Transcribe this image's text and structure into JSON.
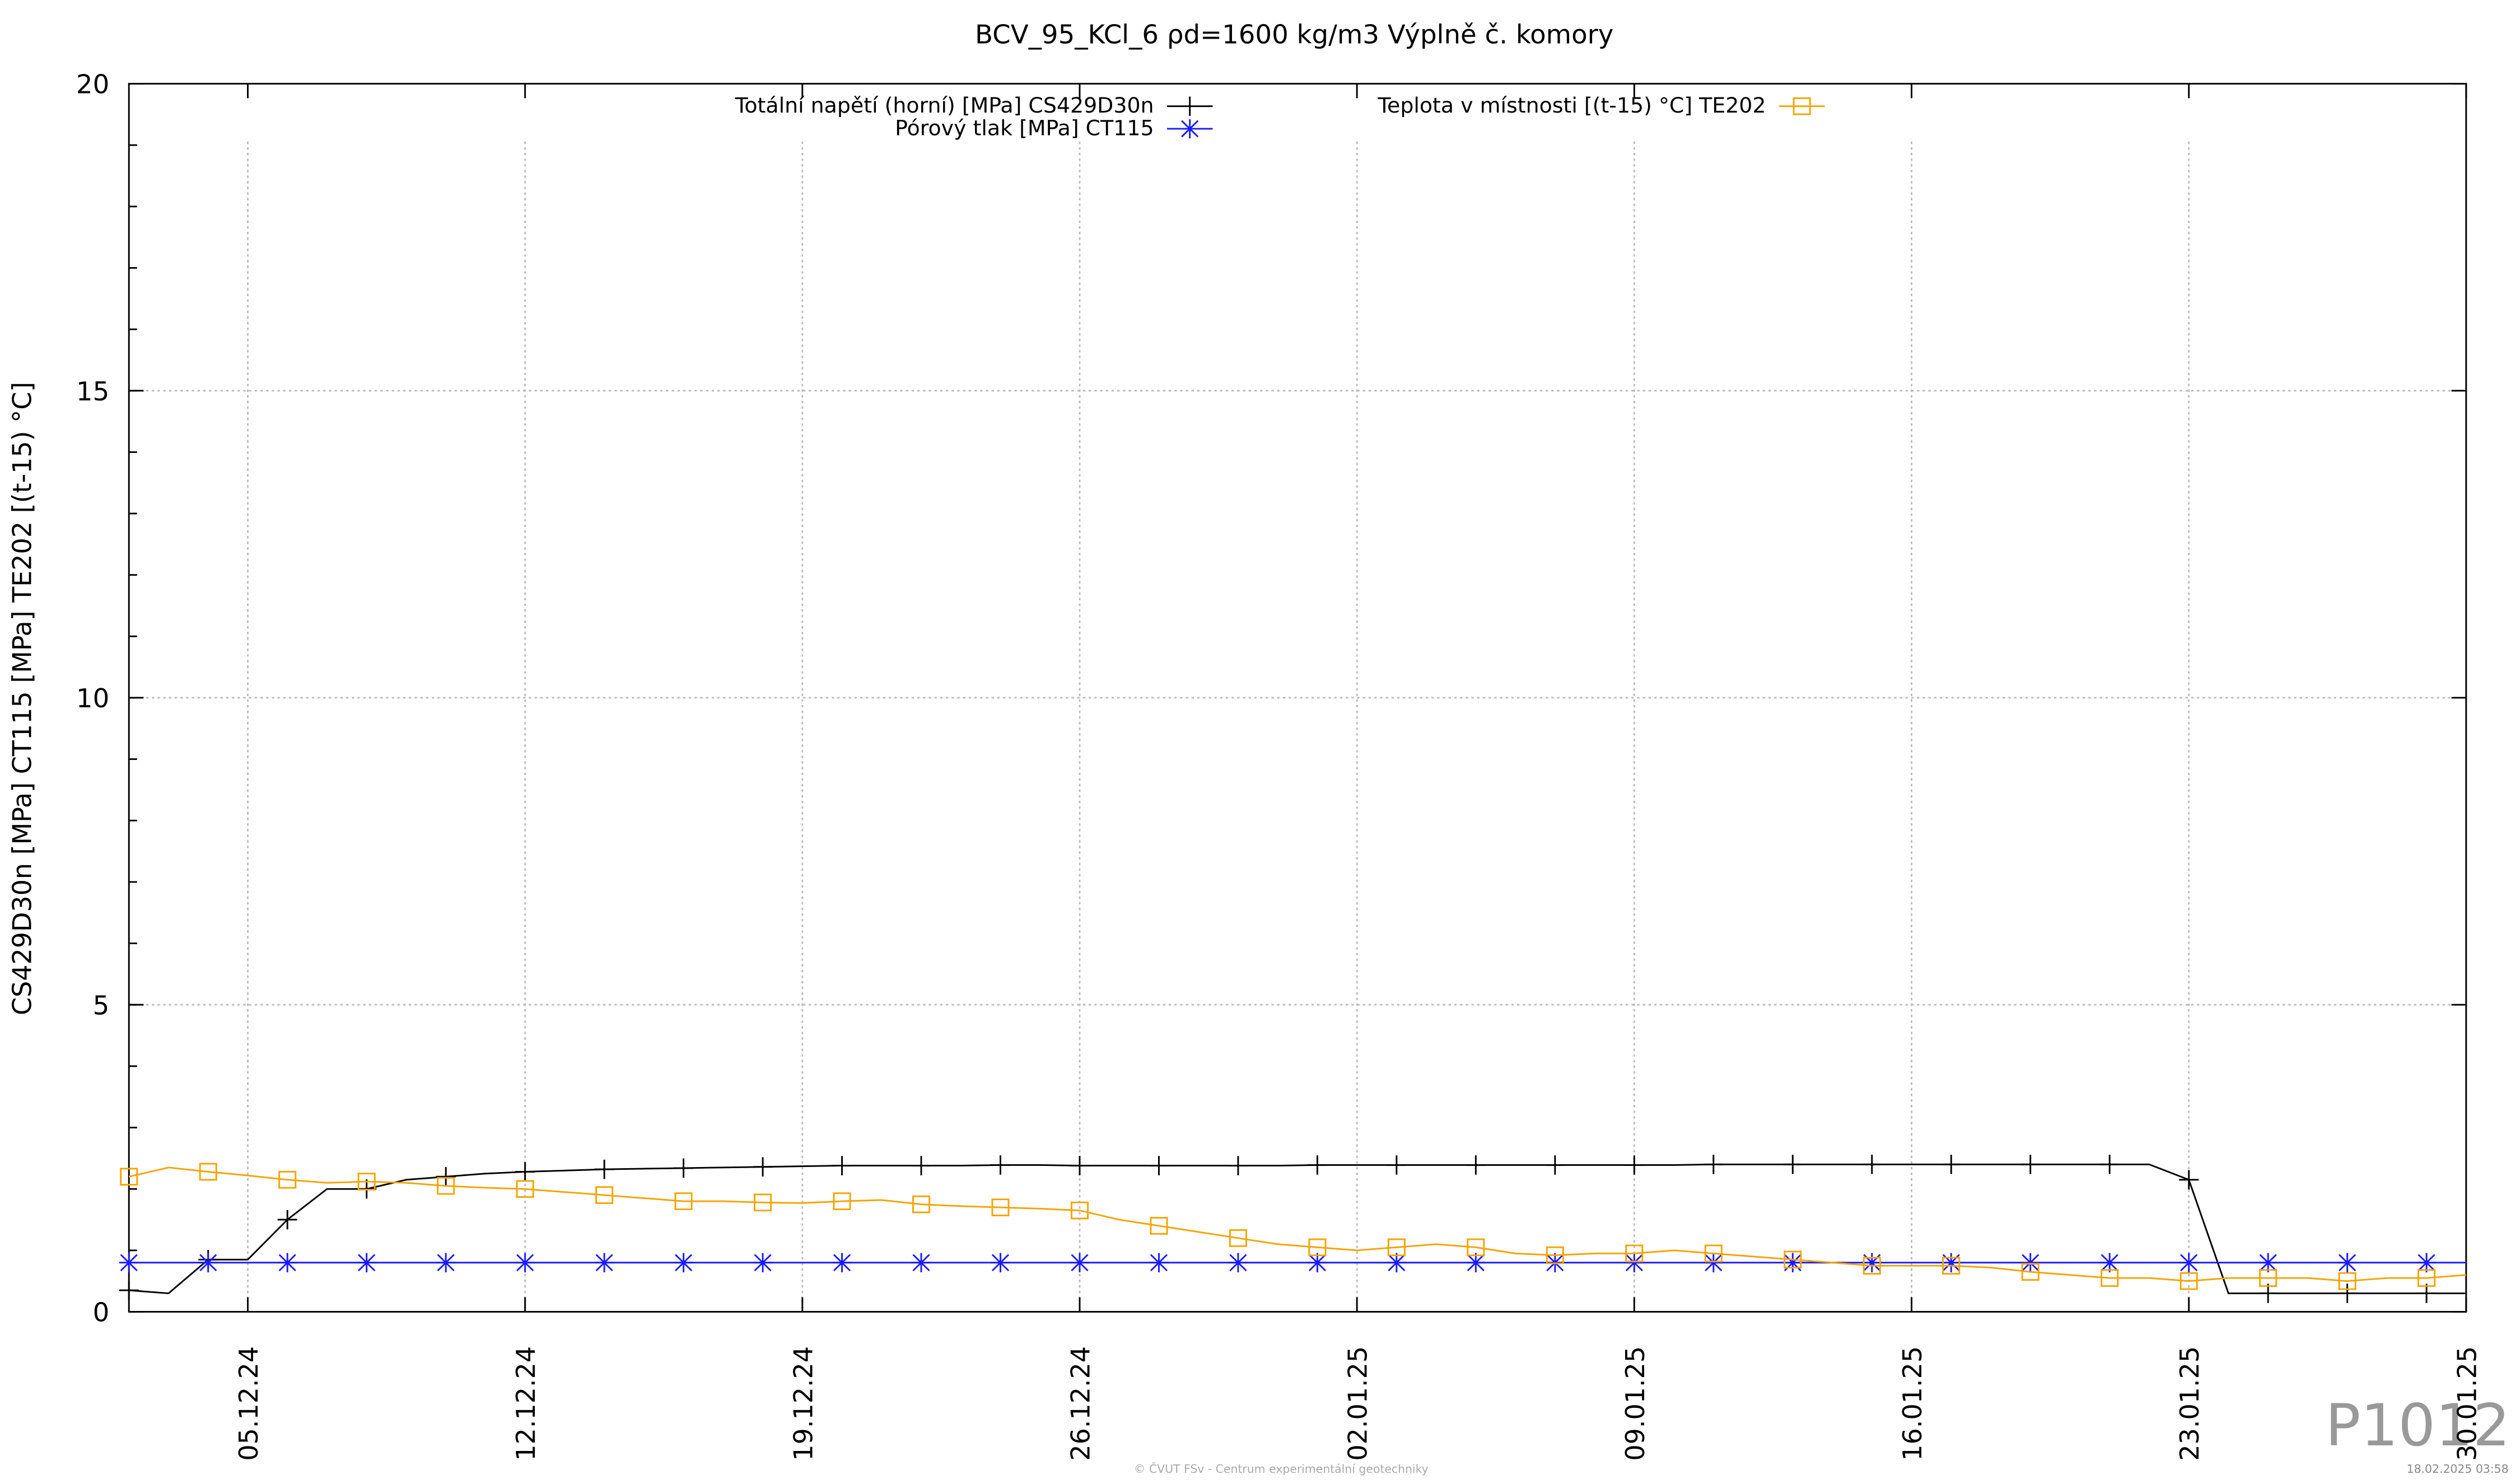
{
  "chart_data": {
    "type": "line",
    "title": "BCV_95_KCl_6 ρd=1600 kg/m3 Výplně č. komory",
    "y_label": "CS429D30n [MPa] CT115 [MPa] TE202 [(t-15) °C]",
    "watermark": "P1012",
    "footer": "© ČVUT FSv - Centrum experimentální geotechniky",
    "timestamp": "18.02.2025 03:58",
    "x": [
      "02.12.24",
      "03.12.24",
      "04.12.24",
      "05.12.24",
      "06.12.24",
      "07.12.24",
      "08.12.24",
      "09.12.24",
      "10.12.24",
      "11.12.24",
      "12.12.24",
      "13.12.24",
      "14.12.24",
      "15.12.24",
      "16.12.24",
      "17.12.24",
      "18.12.24",
      "19.12.24",
      "20.12.24",
      "21.12.24",
      "22.12.24",
      "23.12.24",
      "24.12.24",
      "25.12.24",
      "26.12.24",
      "27.12.24",
      "28.12.24",
      "29.12.24",
      "30.12.24",
      "31.12.24",
      "01.01.25",
      "02.01.25",
      "03.01.25",
      "04.01.25",
      "05.01.25",
      "06.01.25",
      "07.01.25",
      "08.01.25",
      "09.01.25",
      "10.01.25",
      "11.01.25",
      "12.01.25",
      "13.01.25",
      "14.01.25",
      "15.01.25",
      "16.01.25",
      "17.01.25",
      "18.01.25",
      "19.01.25",
      "20.01.25",
      "21.01.25",
      "22.01.25",
      "23.01.25",
      "24.01.25",
      "25.01.25",
      "26.01.25",
      "27.01.25",
      "28.01.25",
      "29.01.25",
      "30.01.25"
    ],
    "series": [
      {
        "name": "Totální napětí (horní) [MPa] CS429D30n",
        "color": "#000000",
        "marker": "plus",
        "values": [
          0.35,
          0.3,
          0.85,
          0.85,
          1.5,
          2.0,
          2.0,
          2.15,
          2.2,
          2.25,
          2.28,
          2.3,
          2.32,
          2.33,
          2.34,
          2.35,
          2.36,
          2.37,
          2.38,
          2.38,
          2.38,
          2.38,
          2.39,
          2.39,
          2.38,
          2.38,
          2.38,
          2.38,
          2.38,
          2.38,
          2.39,
          2.39,
          2.39,
          2.39,
          2.39,
          2.39,
          2.39,
          2.39,
          2.39,
          2.39,
          2.4,
          2.4,
          2.4,
          2.4,
          2.4,
          2.4,
          2.4,
          2.4,
          2.4,
          2.4,
          2.4,
          2.4,
          2.15,
          0.3,
          0.3,
          0.3,
          0.3,
          0.3,
          0.3,
          0.3
        ]
      },
      {
        "name": "Pórový tlak [MPa] CT115",
        "color": "#1a1aff",
        "marker": "star",
        "values": [
          0.8,
          0.8,
          0.8,
          0.8,
          0.8,
          0.8,
          0.8,
          0.8,
          0.8,
          0.8,
          0.8,
          0.8,
          0.8,
          0.8,
          0.8,
          0.8,
          0.8,
          0.8,
          0.8,
          0.8,
          0.8,
          0.8,
          0.8,
          0.8,
          0.8,
          0.8,
          0.8,
          0.8,
          0.8,
          0.8,
          0.8,
          0.8,
          0.8,
          0.8,
          0.8,
          0.8,
          0.8,
          0.8,
          0.8,
          0.8,
          0.8,
          0.8,
          0.8,
          0.8,
          0.8,
          0.8,
          0.8,
          0.8,
          0.8,
          0.8,
          0.8,
          0.8,
          0.8,
          0.8,
          0.8,
          0.8,
          0.8,
          0.8,
          0.8,
          0.8
        ]
      },
      {
        "name": "Teplota v místnosti [(t-15) °C] TE202",
        "color": "#f5a300",
        "marker": "square",
        "values": [
          2.2,
          2.35,
          2.28,
          2.22,
          2.15,
          2.1,
          2.12,
          2.1,
          2.05,
          2.02,
          2.0,
          1.95,
          1.9,
          1.85,
          1.8,
          1.8,
          1.78,
          1.77,
          1.8,
          1.82,
          1.75,
          1.72,
          1.7,
          1.68,
          1.65,
          1.5,
          1.4,
          1.3,
          1.2,
          1.1,
          1.05,
          1.0,
          1.05,
          1.1,
          1.05,
          0.95,
          0.92,
          0.95,
          0.95,
          1.0,
          0.95,
          0.9,
          0.85,
          0.8,
          0.75,
          0.75,
          0.75,
          0.72,
          0.65,
          0.6,
          0.55,
          0.55,
          0.5,
          0.55,
          0.55,
          0.55,
          0.5,
          0.55,
          0.55,
          0.6
        ]
      }
    ],
    "xlim": [
      "02.12.24",
      "30.01.25"
    ],
    "xticks": [
      "05.12.24",
      "12.12.24",
      "19.12.24",
      "26.12.24",
      "02.01.25",
      "09.01.25",
      "16.01.25",
      "23.01.25",
      "30.01.25"
    ],
    "ylim": [
      0,
      20
    ],
    "yticks": [
      0,
      5,
      10,
      15,
      20
    ],
    "grid": true
  }
}
